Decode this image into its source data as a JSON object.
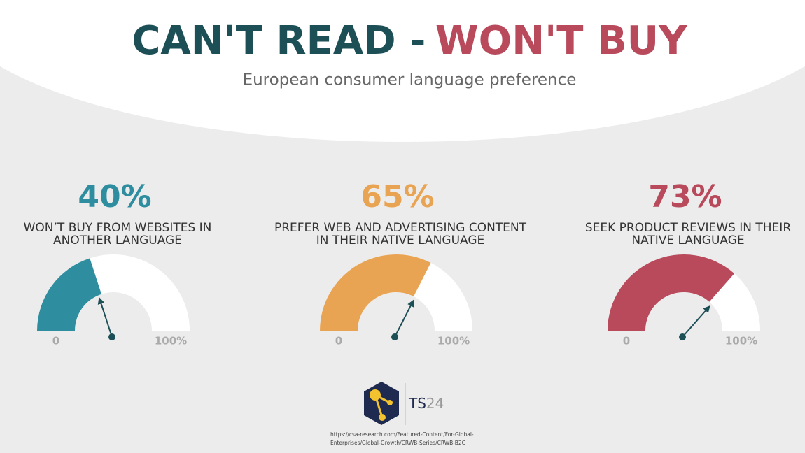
{
  "header": {
    "title_part1": "CAN'T READ -",
    "title_part2": "WON'T BUY",
    "subtitle": "European consumer language preference"
  },
  "chart_data": [
    {
      "type": "gauge",
      "values": [
        40
      ],
      "value_labels": [
        "40%"
      ],
      "label_lines": [
        "WON’T BUY FROM WEBSITES IN",
        "ANOTHER LANGUAGE"
      ],
      "color": "#2e8ea0",
      "ylim": [
        0,
        100
      ],
      "yticks": [
        0,
        {
          "value": 100,
          "label": "100%"
        }
      ]
    },
    {
      "type": "gauge",
      "values": [
        65
      ],
      "value_labels": [
        "65%"
      ],
      "label_lines": [
        "PREFER WEB AND ADVERTISING CONTENT",
        "IN THEIR NATIVE LANGUAGE"
      ],
      "color": "#e9a453",
      "ylim": [
        0,
        100
      ],
      "yticks": [
        0,
        {
          "value": 100,
          "label": "100%"
        }
      ]
    },
    {
      "type": "gauge",
      "values": [
        73
      ],
      "value_labels": [
        "73%"
      ],
      "label_lines": [
        "SEEK PRODUCT REVIEWS IN THEIR",
        "NATIVE LANGUAGE"
      ],
      "color": "#b84a5b",
      "ylim": [
        0,
        100
      ],
      "yticks": [
        0,
        {
          "value": 100,
          "label": "100%"
        }
      ]
    }
  ],
  "footer": {
    "logo_part1": "TS",
    "logo_part2": "24",
    "source_lines": [
      "https://csa-research.com/Featured-Content/For-Global-",
      "Enterprises/Global-Growth/CRWB-Series/CRWB-B2C"
    ]
  }
}
